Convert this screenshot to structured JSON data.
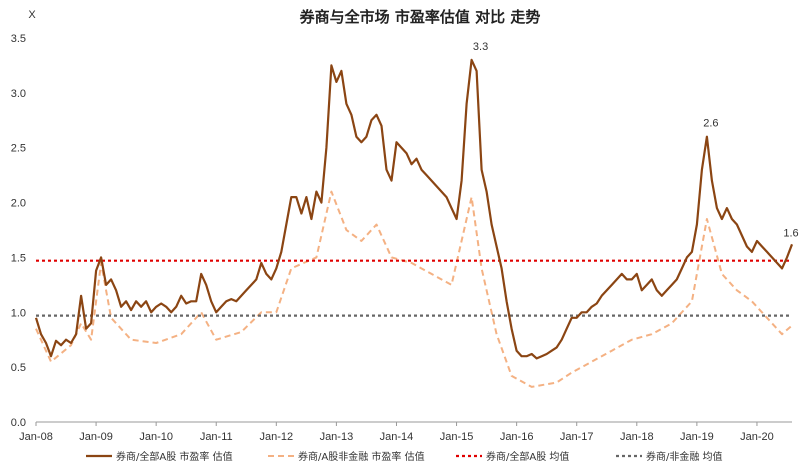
{
  "chart_data": {
    "type": "line",
    "title": "券商与全市场 市盈率估值 对比 走势",
    "ylabel": "X",
    "xlabel": "",
    "ylim": [
      0,
      3.5
    ],
    "yticks": [
      "0.0",
      "0.5",
      "1.0",
      "1.5",
      "2.0",
      "2.5",
      "3.0",
      "3.5"
    ],
    "x_tick_labels": [
      "Jan-08",
      "Jan-09",
      "Jan-10",
      "Jan-11",
      "Jan-12",
      "Jan-13",
      "Jan-14",
      "Jan-15",
      "Jan-16",
      "Jan-17",
      "Jan-18",
      "Jan-19",
      "Jan-20"
    ],
    "xlim": [
      "2008-01",
      "2020-08"
    ],
    "grid": false,
    "legend_position": "bottom",
    "annotations": [
      {
        "text": "3.3",
        "x": "2015-05",
        "y": 3.3
      },
      {
        "text": "2.6",
        "x": "2019-03",
        "y": 2.6
      },
      {
        "text": "1.6",
        "x": "2020-07",
        "y": 1.6
      }
    ],
    "series": [
      {
        "name": "券商/全部A股 市盈率 估值",
        "color": "#8B4513",
        "style": "solid",
        "points": [
          [
            "2008-01",
            0.95
          ],
          [
            "2008-02",
            0.8
          ],
          [
            "2008-03",
            0.72
          ],
          [
            "2008-04",
            0.6
          ],
          [
            "2008-05",
            0.74
          ],
          [
            "2008-06",
            0.7
          ],
          [
            "2008-07",
            0.75
          ],
          [
            "2008-08",
            0.72
          ],
          [
            "2008-09",
            0.8
          ],
          [
            "2008-10",
            1.15
          ],
          [
            "2008-11",
            0.85
          ],
          [
            "2008-12",
            0.9
          ],
          [
            "2009-01",
            1.38
          ],
          [
            "2009-02",
            1.5
          ],
          [
            "2009-03",
            1.25
          ],
          [
            "2009-04",
            1.3
          ],
          [
            "2009-05",
            1.2
          ],
          [
            "2009-06",
            1.05
          ],
          [
            "2009-07",
            1.1
          ],
          [
            "2009-08",
            1.02
          ],
          [
            "2009-09",
            1.1
          ],
          [
            "2009-10",
            1.05
          ],
          [
            "2009-11",
            1.1
          ],
          [
            "2009-12",
            1.0
          ],
          [
            "2010-01",
            1.05
          ],
          [
            "2010-02",
            1.08
          ],
          [
            "2010-03",
            1.05
          ],
          [
            "2010-04",
            1.0
          ],
          [
            "2010-05",
            1.05
          ],
          [
            "2010-06",
            1.15
          ],
          [
            "2010-07",
            1.08
          ],
          [
            "2010-08",
            1.1
          ],
          [
            "2010-09",
            1.1
          ],
          [
            "2010-10",
            1.35
          ],
          [
            "2010-11",
            1.25
          ],
          [
            "2010-12",
            1.1
          ],
          [
            "2011-01",
            1.0
          ],
          [
            "2011-02",
            1.05
          ],
          [
            "2011-03",
            1.1
          ],
          [
            "2011-04",
            1.12
          ],
          [
            "2011-05",
            1.1
          ],
          [
            "2011-06",
            1.15
          ],
          [
            "2011-07",
            1.2
          ],
          [
            "2011-08",
            1.25
          ],
          [
            "2011-09",
            1.3
          ],
          [
            "2011-10",
            1.45
          ],
          [
            "2011-11",
            1.35
          ],
          [
            "2011-12",
            1.3
          ],
          [
            "2012-01",
            1.4
          ],
          [
            "2012-02",
            1.55
          ],
          [
            "2012-03",
            1.8
          ],
          [
            "2012-04",
            2.05
          ],
          [
            "2012-05",
            2.05
          ],
          [
            "2012-06",
            1.9
          ],
          [
            "2012-07",
            2.05
          ],
          [
            "2012-08",
            1.85
          ],
          [
            "2012-09",
            2.1
          ],
          [
            "2012-10",
            2.0
          ],
          [
            "2012-11",
            2.5
          ],
          [
            "2012-12",
            3.25
          ],
          [
            "2013-01",
            3.1
          ],
          [
            "2013-02",
            3.2
          ],
          [
            "2013-03",
            2.9
          ],
          [
            "2013-04",
            2.8
          ],
          [
            "2013-05",
            2.6
          ],
          [
            "2013-06",
            2.55
          ],
          [
            "2013-07",
            2.6
          ],
          [
            "2013-08",
            2.75
          ],
          [
            "2013-09",
            2.8
          ],
          [
            "2013-10",
            2.7
          ],
          [
            "2013-11",
            2.3
          ],
          [
            "2013-12",
            2.2
          ],
          [
            "2014-01",
            2.55
          ],
          [
            "2014-02",
            2.5
          ],
          [
            "2014-03",
            2.45
          ],
          [
            "2014-04",
            2.35
          ],
          [
            "2014-05",
            2.4
          ],
          [
            "2014-06",
            2.3
          ],
          [
            "2014-07",
            2.25
          ],
          [
            "2014-08",
            2.2
          ],
          [
            "2014-09",
            2.15
          ],
          [
            "2014-10",
            2.1
          ],
          [
            "2014-11",
            2.05
          ],
          [
            "2014-12",
            1.95
          ],
          [
            "2015-01",
            1.85
          ],
          [
            "2015-02",
            2.2
          ],
          [
            "2015-03",
            2.9
          ],
          [
            "2015-04",
            3.3
          ],
          [
            "2015-05",
            3.2
          ],
          [
            "2015-06",
            2.3
          ],
          [
            "2015-07",
            2.1
          ],
          [
            "2015-08",
            1.8
          ],
          [
            "2015-09",
            1.6
          ],
          [
            "2015-10",
            1.4
          ],
          [
            "2015-11",
            1.1
          ],
          [
            "2015-12",
            0.85
          ],
          [
            "2016-01",
            0.65
          ],
          [
            "2016-02",
            0.6
          ],
          [
            "2016-03",
            0.6
          ],
          [
            "2016-04",
            0.62
          ],
          [
            "2016-05",
            0.58
          ],
          [
            "2016-06",
            0.6
          ],
          [
            "2016-07",
            0.62
          ],
          [
            "2016-08",
            0.65
          ],
          [
            "2016-09",
            0.68
          ],
          [
            "2016-10",
            0.75
          ],
          [
            "2016-11",
            0.85
          ],
          [
            "2016-12",
            0.95
          ],
          [
            "2017-01",
            0.95
          ],
          [
            "2017-02",
            1.0
          ],
          [
            "2017-03",
            1.0
          ],
          [
            "2017-04",
            1.05
          ],
          [
            "2017-05",
            1.08
          ],
          [
            "2017-06",
            1.15
          ],
          [
            "2017-07",
            1.2
          ],
          [
            "2017-08",
            1.25
          ],
          [
            "2017-09",
            1.3
          ],
          [
            "2017-10",
            1.35
          ],
          [
            "2017-11",
            1.3
          ],
          [
            "2017-12",
            1.3
          ],
          [
            "2018-01",
            1.35
          ],
          [
            "2018-02",
            1.2
          ],
          [
            "2018-03",
            1.25
          ],
          [
            "2018-04",
            1.3
          ],
          [
            "2018-05",
            1.2
          ],
          [
            "2018-06",
            1.15
          ],
          [
            "2018-07",
            1.2
          ],
          [
            "2018-08",
            1.25
          ],
          [
            "2018-09",
            1.3
          ],
          [
            "2018-10",
            1.4
          ],
          [
            "2018-11",
            1.5
          ],
          [
            "2018-12",
            1.55
          ],
          [
            "2019-01",
            1.8
          ],
          [
            "2019-02",
            2.3
          ],
          [
            "2019-03",
            2.6
          ],
          [
            "2019-04",
            2.2
          ],
          [
            "2019-05",
            1.95
          ],
          [
            "2019-06",
            1.85
          ],
          [
            "2019-07",
            1.95
          ],
          [
            "2019-08",
            1.85
          ],
          [
            "2019-09",
            1.8
          ],
          [
            "2019-10",
            1.7
          ],
          [
            "2019-11",
            1.6
          ],
          [
            "2019-12",
            1.55
          ],
          [
            "2020-01",
            1.65
          ],
          [
            "2020-02",
            1.6
          ],
          [
            "2020-03",
            1.55
          ],
          [
            "2020-04",
            1.5
          ],
          [
            "2020-05",
            1.45
          ],
          [
            "2020-06",
            1.4
          ],
          [
            "2020-07",
            1.5
          ],
          [
            "2020-08",
            1.62
          ]
        ]
      },
      {
        "name": "券商/A股非金融 市盈率 估值",
        "color": "#F4B183",
        "style": "dashed",
        "points": [
          [
            "2008-01",
            0.85
          ],
          [
            "2008-04",
            0.55
          ],
          [
            "2008-08",
            0.7
          ],
          [
            "2008-10",
            0.9
          ],
          [
            "2008-12",
            0.75
          ],
          [
            "2009-02",
            1.45
          ],
          [
            "2009-04",
            0.95
          ],
          [
            "2009-08",
            0.75
          ],
          [
            "2010-01",
            0.72
          ],
          [
            "2010-06",
            0.8
          ],
          [
            "2010-10",
            1.0
          ],
          [
            "2011-01",
            0.75
          ],
          [
            "2011-06",
            0.82
          ],
          [
            "2011-10",
            1.0
          ],
          [
            "2012-01",
            1.0
          ],
          [
            "2012-04",
            1.4
          ],
          [
            "2012-09",
            1.5
          ],
          [
            "2012-12",
            2.1
          ],
          [
            "2013-03",
            1.75
          ],
          [
            "2013-06",
            1.65
          ],
          [
            "2013-09",
            1.8
          ],
          [
            "2013-12",
            1.5
          ],
          [
            "2014-04",
            1.45
          ],
          [
            "2014-08",
            1.35
          ],
          [
            "2014-12",
            1.25
          ],
          [
            "2015-04",
            2.05
          ],
          [
            "2015-06",
            1.4
          ],
          [
            "2015-09",
            0.8
          ],
          [
            "2015-12",
            0.42
          ],
          [
            "2016-04",
            0.32
          ],
          [
            "2016-09",
            0.36
          ],
          [
            "2016-12",
            0.45
          ],
          [
            "2017-04",
            0.55
          ],
          [
            "2017-08",
            0.65
          ],
          [
            "2017-12",
            0.75
          ],
          [
            "2018-04",
            0.8
          ],
          [
            "2018-08",
            0.9
          ],
          [
            "2018-12",
            1.1
          ],
          [
            "2019-03",
            1.85
          ],
          [
            "2019-06",
            1.35
          ],
          [
            "2019-09",
            1.2
          ],
          [
            "2019-12",
            1.1
          ],
          [
            "2020-03",
            0.95
          ],
          [
            "2020-06",
            0.8
          ],
          [
            "2020-08",
            0.88
          ]
        ]
      },
      {
        "name": "券商/全部A股 均值",
        "color": "#E00000",
        "style": "dotted",
        "points": [
          [
            "2008-01",
            1.47
          ],
          [
            "2020-08",
            1.47
          ]
        ]
      },
      {
        "name": "券商/非金融 均值",
        "color": "#666666",
        "style": "dotted",
        "points": [
          [
            "2008-01",
            0.97
          ],
          [
            "2020-08",
            0.97
          ]
        ]
      }
    ]
  }
}
